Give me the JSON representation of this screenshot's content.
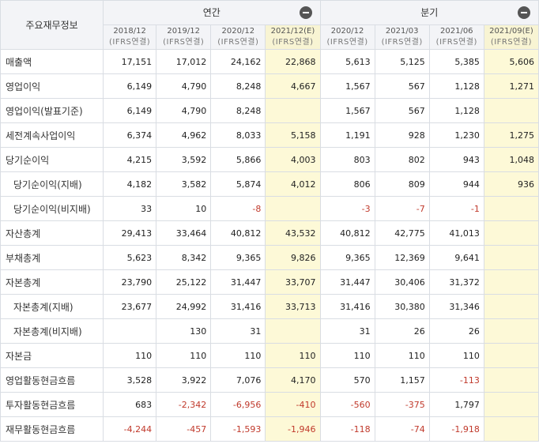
{
  "header": {
    "corner_label": "주요재무정보",
    "groups": [
      {
        "label": "연간"
      },
      {
        "label": "분기"
      }
    ],
    "periods": [
      {
        "date": "2018/12",
        "basis": "(IFRS연결)",
        "estimate": false
      },
      {
        "date": "2019/12",
        "basis": "(IFRS연결)",
        "estimate": false
      },
      {
        "date": "2020/12",
        "basis": "(IFRS연결)",
        "estimate": false
      },
      {
        "date": "2021/12(E)",
        "basis": "(IFRS연결)",
        "estimate": true
      },
      {
        "date": "2020/12",
        "basis": "(IFRS연결)",
        "estimate": false
      },
      {
        "date": "2021/03",
        "basis": "(IFRS연결)",
        "estimate": false
      },
      {
        "date": "2021/06",
        "basis": "(IFRS연결)",
        "estimate": false
      },
      {
        "date": "2021/09(E)",
        "basis": "(IFRS연결)",
        "estimate": true
      }
    ]
  },
  "rows": [
    {
      "label": "매출액",
      "indent": false,
      "values": [
        "17,151",
        "17,012",
        "24,162",
        "22,868",
        "5,613",
        "5,125",
        "5,385",
        "5,606"
      ]
    },
    {
      "label": "영업이익",
      "indent": false,
      "values": [
        "6,149",
        "4,790",
        "8,248",
        "4,667",
        "1,567",
        "567",
        "1,128",
        "1,271"
      ]
    },
    {
      "label": "영업이익(발표기준)",
      "indent": false,
      "values": [
        "6,149",
        "4,790",
        "8,248",
        "",
        "1,567",
        "567",
        "1,128",
        ""
      ]
    },
    {
      "label": "세전계속사업이익",
      "indent": false,
      "values": [
        "6,374",
        "4,962",
        "8,033",
        "5,158",
        "1,191",
        "928",
        "1,230",
        "1,275"
      ]
    },
    {
      "label": "당기순이익",
      "indent": false,
      "values": [
        "4,215",
        "3,592",
        "5,866",
        "4,003",
        "803",
        "802",
        "943",
        "1,048"
      ]
    },
    {
      "label": "당기순이익(지배)",
      "indent": true,
      "values": [
        "4,182",
        "3,582",
        "5,874",
        "4,012",
        "806",
        "809",
        "944",
        "936"
      ]
    },
    {
      "label": "당기순이익(비지배)",
      "indent": true,
      "values": [
        "33",
        "10",
        "-8",
        "",
        "-3",
        "-7",
        "-1",
        ""
      ]
    },
    {
      "label": "자산총계",
      "indent": false,
      "values": [
        "29,413",
        "33,464",
        "40,812",
        "43,532",
        "40,812",
        "42,775",
        "41,013",
        ""
      ]
    },
    {
      "label": "부채총계",
      "indent": false,
      "values": [
        "5,623",
        "8,342",
        "9,365",
        "9,826",
        "9,365",
        "12,369",
        "9,641",
        ""
      ]
    },
    {
      "label": "자본총계",
      "indent": false,
      "values": [
        "23,790",
        "25,122",
        "31,447",
        "33,707",
        "31,447",
        "30,406",
        "31,372",
        ""
      ]
    },
    {
      "label": "자본총계(지배)",
      "indent": true,
      "values": [
        "23,677",
        "24,992",
        "31,416",
        "33,713",
        "31,416",
        "30,380",
        "31,346",
        ""
      ]
    },
    {
      "label": "자본총계(비지배)",
      "indent": true,
      "values": [
        "",
        "130",
        "31",
        "",
        "31",
        "26",
        "26",
        ""
      ]
    },
    {
      "label": "자본금",
      "indent": false,
      "values": [
        "110",
        "110",
        "110",
        "110",
        "110",
        "110",
        "110",
        ""
      ]
    },
    {
      "label": "영업활동현금흐름",
      "indent": false,
      "values": [
        "3,528",
        "3,922",
        "7,076",
        "4,170",
        "570",
        "1,157",
        "-113",
        ""
      ]
    },
    {
      "label": "투자활동현금흐름",
      "indent": false,
      "values": [
        "683",
        "-2,342",
        "-6,956",
        "-410",
        "-560",
        "-375",
        "1,797",
        ""
      ]
    },
    {
      "label": "재무활동현금흐름",
      "indent": false,
      "values": [
        "-4,244",
        "-457",
        "-1,593",
        "-1,946",
        "-118",
        "-74",
        "-1,918",
        ""
      ]
    }
  ]
}
